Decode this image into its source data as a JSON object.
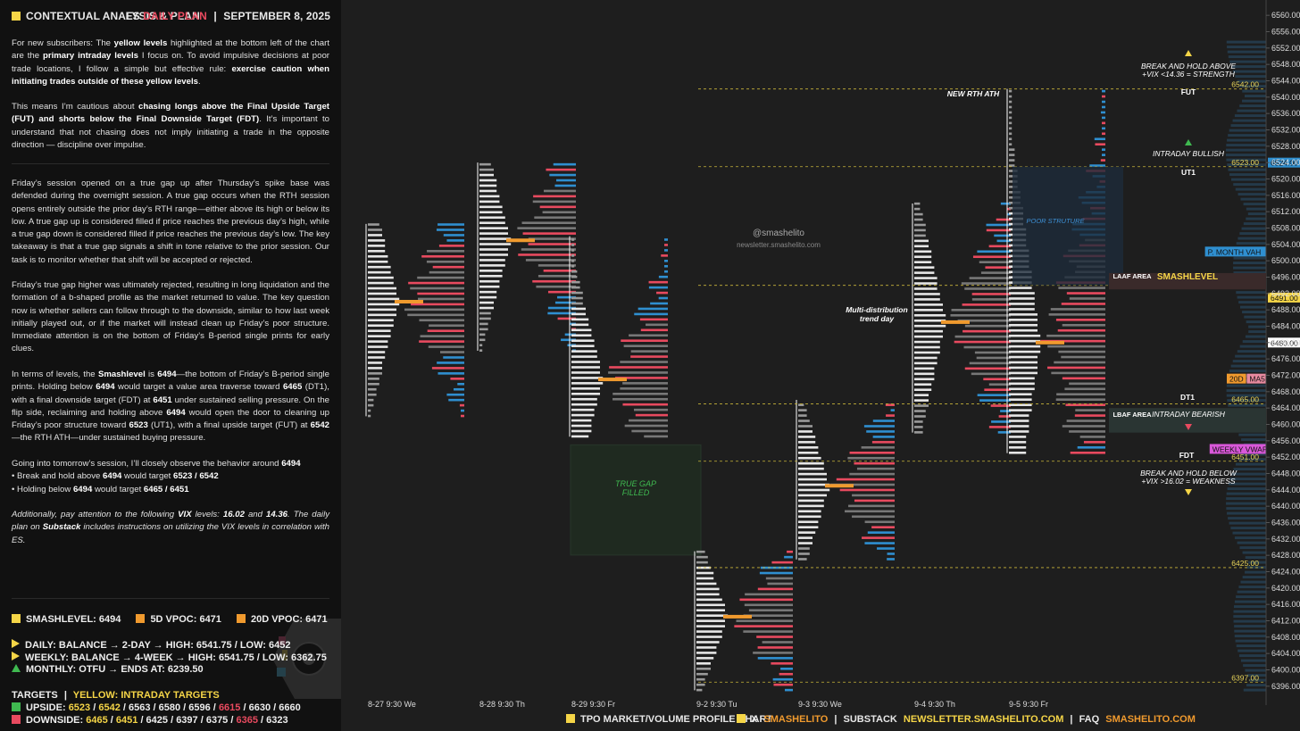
{
  "header": {
    "title": "CONTEXTUAL ANALYSIS & PLAN",
    "symbol": "ES",
    "plan_label": "DAILY PLAN",
    "separator": "|",
    "date": "SEPTEMBER 8, 2025"
  },
  "paragraphs": [
    "For new subscribers: The <b>yellow levels</b> highlighted at the bottom left of the chart are the <b>primary intraday levels</b> I focus on. To avoid impulsive decisions at poor trade locations, I follow a simple but effective rule: <b>exercise caution when initiating trades outside of these yellow levels</b>.",
    "This means I’m cautious about <b>chasing longs above the Final Upside Target (FUT) and shorts below the Final Downside Target (FDT)</b>. It’s important to understand that not chasing does not imply initiating a trade in the opposite direction — discipline over impulse.",
    "Friday’s session opened on a true gap up after Thursday’s spike base was defended during the overnight session. A true gap occurs when the RTH session opens entirely outside the prior day’s RTH range—either above its high or below its low. A true gap up is considered filled if price reaches the previous day’s high, while a true gap down is considered filled if price reaches the previous day’s low. The key takeaway is that a true gap signals a shift in tone relative to the prior session. Our task is to monitor whether that shift will be accepted or rejected.",
    "Friday’s true gap higher was ultimately rejected, resulting in long liquidation and the formation of a b-shaped profile as the market returned to value. The key question now is whether sellers can follow through to the downside, similar to how last week initially played out, or if the market will instead clean up Friday’s poor structure. Immediate attention is on the bottom of Friday’s B-period single prints for early clues.",
    "In terms of levels, the <b>Smashlevel</b> is <b>6494</b>—the bottom of Friday’s B-period single prints. Holding below <b>6494</b> would target a value area traverse toward <b>6465</b> (DT1), with a final downside target (FDT) at <b>6451</b> under sustained selling pressure. On the flip side, reclaiming and holding above <b>6494</b> would open the door to cleaning up Friday’s poor structure toward <b>6523</b> (UT1), with a final upside target (FUT) at <b>6542</b>—the RTH ATH—under sustained buying pressure.",
    "Going into tomorrow’s session, I’ll closely observe the behavior around <b>6494</b><br>• Break and hold above <b>6494</b> would target <b>6523 / 6542</b><br>• Holding below <b>6494</b> would target <b>6465 / 6451</b>",
    "Additionally, pay attention to the following <b>VIX</b> levels: <b>16.02</b> and <b>14.36</b>. The daily plan on <b>Substack</b> includes instructions on utilizing the VIX levels in correlation with ES."
  ],
  "levels": {
    "smash": "SMASHLEVEL: 6494",
    "vpoc5": "5D VPOC: 6471",
    "vpoc20": "20D VPOC: 6471",
    "daily": "DAILY: BALANCE → 2-DAY → HIGH: 6541.75 / LOW: 6452",
    "weekly": "WEEKLY: BALANCE → 4-WEEK → HIGH: 6541.75 / LOW: 6362.75",
    "monthly": "MONTHLY: OTFU → ENDS AT: 6239.50"
  },
  "targets": {
    "title": "TARGETS",
    "sep": "|",
    "intraday": "YELLOW: INTRADAY TARGETS",
    "up_label": "UPSIDE:",
    "up_y1": "6523",
    "up_y2": "6542",
    "up_mid": "/ 6563 / 6580 / 6596 /",
    "up_r": "6615",
    "up_end": "/ 6630 / 6660",
    "down_label": "DOWNSIDE:",
    "down_y1": "6465",
    "down_y2": "6451",
    "down_mid": "/ 6425 / 6397 / 6375 /",
    "down_r": "6365",
    "down_end": "/ 6323"
  },
  "footer": {
    "chart_type": "TPO MARKET/VOLUME PROFILE CHART",
    "x_label": "X",
    "x_handle": "SMASHELITO",
    "substack_label": "SUBSTACK",
    "substack_url": "NEWSLETTER.SMASHELITO.COM",
    "faq_label": "FAQ",
    "faq_handle": "SMASHELITO.COM",
    "sep": "|"
  },
  "colors": {
    "yellow": "#f5d547",
    "orange": "#f09a2e",
    "red": "#e84a5f",
    "green": "#3fb950",
    "blue": "#2f8fd0",
    "background": "#1e1e1e",
    "panel": "#111111"
  },
  "chart_data": {
    "type": "tpo-profile",
    "watermark": [
      "@smashelito",
      "newsletter.smashelito.com"
    ],
    "y_range": [
      6394,
      6562
    ],
    "y_ticks": [
      6396,
      6400,
      6404,
      6408,
      6412,
      6416,
      6420,
      6424,
      6428,
      6432,
      6436,
      6440,
      6444,
      6448,
      6452,
      6456,
      6460,
      6464,
      6468,
      6472,
      6476,
      6480,
      6484,
      6488,
      6492,
      6496,
      6500,
      6504,
      6508,
      6512,
      6516,
      6520,
      6524,
      6528,
      6532,
      6536,
      6540,
      6544,
      6548,
      6552,
      6556,
      6560
    ],
    "sessions": [
      {
        "label": "8-27  9:30 We",
        "low": 6462,
        "high": 6509,
        "poc": 6490
      },
      {
        "label": "8-28  9:30 Th",
        "low": 6478,
        "high": 6524,
        "poc": 6505
      },
      {
        "label": "8-29  9:30 Fr",
        "low": 6457,
        "high": 6506,
        "poc": 6471
      },
      {
        "label": "9-2  9:30 Tu",
        "low": 6395,
        "high": 6429,
        "poc": 6413
      },
      {
        "label": "9-3  9:30 We",
        "low": 6427,
        "high": 6466,
        "poc": 6445
      },
      {
        "label": "9-4  9:30 Th",
        "low": 6458,
        "high": 6514,
        "poc": 6485
      },
      {
        "label": "9-5  9:30 Fr",
        "low": 6453,
        "high": 6542,
        "poc": 6480
      }
    ],
    "horizontal_levels": [
      {
        "value": 6542.0,
        "label": "6542.00",
        "name": "FUT"
      },
      {
        "value": 6523.0,
        "label": "6523.00",
        "name": "UT1"
      },
      {
        "value": 6494.0,
        "label": "6494.00",
        "name": "SMASHLEVEL"
      },
      {
        "value": 6465.0,
        "label": "6465.00",
        "name": "DT1"
      },
      {
        "value": 6451.0,
        "label": "6451.00",
        "name": "FDT"
      },
      {
        "value": 6425.0,
        "label": "6425.00",
        "name": ""
      },
      {
        "value": 6397.0,
        "label": "6397.00",
        "name": ""
      }
    ],
    "price_tags": [
      {
        "value": 6524.0,
        "text": "6524.00",
        "color": "#2f8fd0"
      },
      {
        "value": 6502.25,
        "text": "P. MONTH VAH",
        "color": "#2f8fd0"
      },
      {
        "value": 6491.0,
        "text": "6491.00",
        "color": "#f5d547"
      },
      {
        "value": 6480.0,
        "text": "6480.00",
        "color": "#ffffff"
      },
      {
        "value": 6471.2,
        "text": "20D",
        "color": "#f09a2e"
      },
      {
        "value": 6471.2,
        "text": "MA5",
        "color": "#e88aa0"
      },
      {
        "value": 6461.33,
        "text": "MA20",
        "color": "#e88aa0"
      },
      {
        "value": 6454.01,
        "text": "WEEKLY VWAP",
        "color": "#d958d9"
      }
    ],
    "annotations": {
      "break_above_1": "BREAK AND HOLD ABOVE",
      "break_above_2": "+VIX <14.36 = STRENGTH",
      "fut": "FUT",
      "intraday_bullish": "INTRADAY BULLISH",
      "ut1": "UT1",
      "new_rth_ath": "NEW RTH ATH",
      "poor_structure": "POOR STRUTURE",
      "laaf": "LAAF AREA",
      "smashlevel": "SMASHLEVEL",
      "multi_1": "Multi-distribution",
      "multi_2": "trend day",
      "dt1": "DT1",
      "lbaf": "LBAF AREA",
      "intraday_bearish": "INTRADAY BEARISH",
      "fdt": "FDT",
      "break_below_1": "BREAK AND HOLD BELOW",
      "break_below_2": "+VIX >16.02 = WEAKNESS",
      "gap_1": "TRUE GAP",
      "gap_2": "FILLED"
    }
  }
}
